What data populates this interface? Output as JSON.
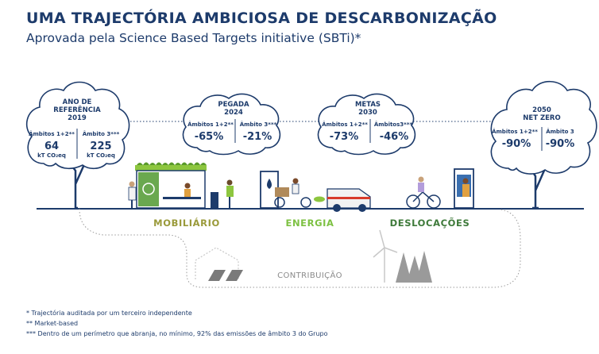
{
  "title": "UMA TRAJECTÓRIA AMBICIOSA DE DESCARBONIZAÇÃO",
  "subtitle": "Aprovada pela Science Based Targets initiative (SBTi)*",
  "baseline": {
    "title_line1": "ANO DE",
    "title_line2": "REFERÊNCIA",
    "year": "2019",
    "scope12_label": "Âmbitos 1+2**",
    "scope12_value": "64",
    "scope12_unit": "kT CO₂eq",
    "scope3_label": "Âmbito 3***",
    "scope3_value": "225",
    "scope3_unit": "kT CO₂eq"
  },
  "footprint": {
    "title_line1": "PEGADA",
    "year": "2024",
    "scope12_label": "Âmbitos 1+2**",
    "scope12_value": "-65%",
    "scope3_label": "Âmbito 3***",
    "scope3_value": "-21%"
  },
  "targets": {
    "title_line1": "METAS",
    "year": "2030",
    "scope12_label": "Âmbitos 1+2**",
    "scope12_value": "-73%",
    "scope3_label": "Âmbitos3***",
    "scope3_value": "-46%"
  },
  "netzero": {
    "year": "2050",
    "title_line2": "NET ZERO",
    "scope12_label": "Âmbitos 1+2**",
    "scope12_value": "-90%",
    "scope3_label": "Âmbito 3",
    "scope3_value": "-90%"
  },
  "categories": {
    "furniture": "MOBILIÁRIO",
    "energy": "ENERGIA",
    "mobility": "DESLOCAÇÕES",
    "contribution": "CONTRIBUIÇÃO"
  },
  "colors": {
    "navy": "#1d3b6b",
    "furniture": "#9a9a3a",
    "energy": "#7dc142",
    "mobility": "#3e7a3a",
    "grey": "#9a9a9a"
  },
  "footnotes": [
    "*  Trajectória auditada por um terceiro independente",
    "** Market-based",
    "*** Dentro de um perímetro que abranja, no mínimo, 92% das emissões de âmbito 3 do Grupo"
  ]
}
